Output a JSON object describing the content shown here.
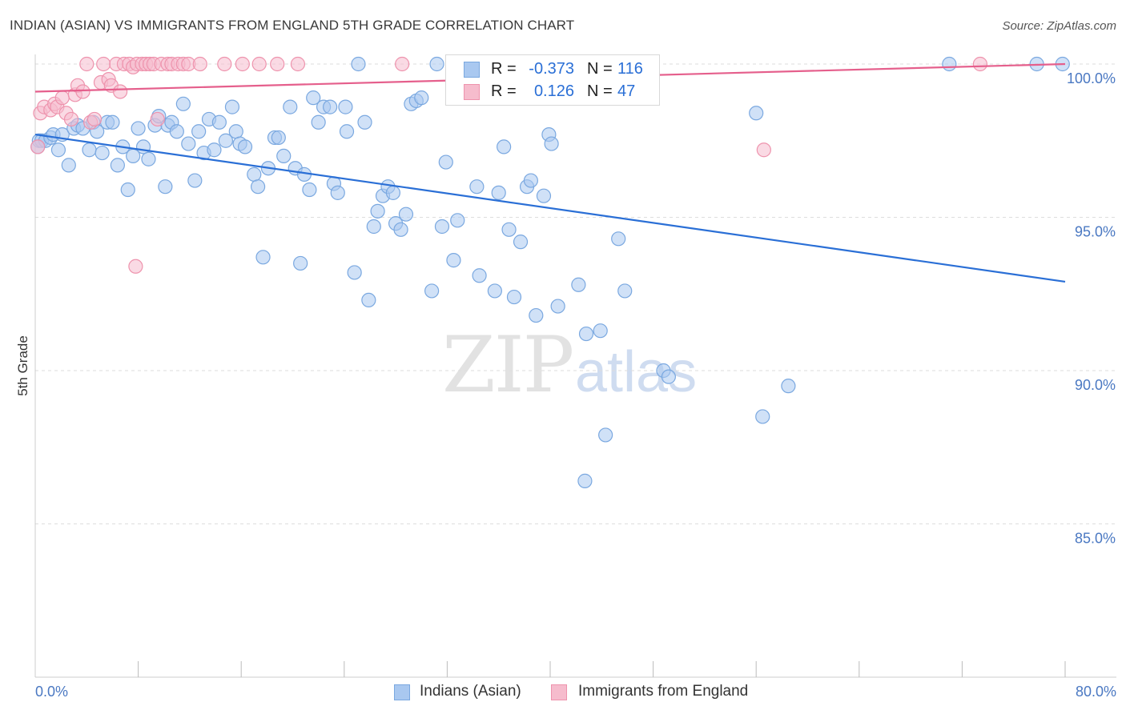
{
  "title": "INDIAN (ASIAN) VS IMMIGRANTS FROM ENGLAND 5TH GRADE CORRELATION CHART",
  "source": "Source: ZipAtlas.com",
  "watermark": {
    "zip": "ZIP",
    "atlas": "atlas"
  },
  "legend": {
    "rows": [
      {
        "r_label": "R =",
        "r_value": "-0.373",
        "n_label": "N =",
        "n_value": "116"
      },
      {
        "r_label": "R =",
        "r_value": "0.126",
        "n_label": "N =",
        "n_value": "47"
      }
    ]
  },
  "bottom_legend": [
    "Indians (Asian)",
    "Immigrants from England"
  ],
  "colors": {
    "blue_fill": "#a9c8f0",
    "blue_stroke": "#7aa8e0",
    "blue_line": "#2a6fd6",
    "pink_fill": "#f6bccd",
    "pink_stroke": "#ee93ad",
    "pink_line": "#e55f8c",
    "grid": "#dddddd",
    "axis_label": "#4a78c2"
  },
  "chart_data": {
    "type": "scatter",
    "title": "INDIAN (ASIAN) VS IMMIGRANTS FROM ENGLAND 5TH GRADE CORRELATION CHART",
    "ylabel": "5th Grade",
    "xlabel": "",
    "xlim": [
      0,
      80
    ],
    "ylim": [
      80.5,
      100.7
    ],
    "x_tick_labels": [
      "0.0%",
      "80.0%"
    ],
    "y_ticks": [
      85,
      90,
      95,
      100
    ],
    "y_tick_labels": [
      "85.0%",
      "90.0%",
      "95.0%",
      "100.0%"
    ],
    "grid": "horizontal dashed",
    "series": [
      {
        "name": "Indians (Asian)",
        "color": "#a9c8f0",
        "trend": {
          "x": [
            0,
            80
          ],
          "y": [
            97.7,
            92.9
          ]
        },
        "points": [
          [
            0.3,
            97.5
          ],
          [
            0.5,
            97.5
          ],
          [
            0.8,
            97.5
          ],
          [
            1.2,
            97.6
          ],
          [
            1.4,
            97.7
          ],
          [
            1.8,
            97.2
          ],
          [
            2.1,
            97.7
          ],
          [
            2.6,
            96.7
          ],
          [
            3.0,
            97.9
          ],
          [
            3.3,
            98.0
          ],
          [
            3.7,
            97.9
          ],
          [
            4.2,
            97.2
          ],
          [
            4.5,
            98.1
          ],
          [
            4.8,
            97.8
          ],
          [
            5.2,
            97.1
          ],
          [
            5.6,
            98.1
          ],
          [
            6.0,
            98.1
          ],
          [
            6.4,
            96.7
          ],
          [
            6.8,
            97.3
          ],
          [
            7.2,
            95.9
          ],
          [
            7.6,
            97.0
          ],
          [
            8.0,
            97.9
          ],
          [
            8.4,
            97.3
          ],
          [
            8.8,
            96.9
          ],
          [
            9.3,
            98.0
          ],
          [
            9.6,
            98.3
          ],
          [
            10.1,
            96.0
          ],
          [
            10.3,
            98.0
          ],
          [
            10.6,
            98.1
          ],
          [
            11.0,
            97.8
          ],
          [
            11.5,
            98.7
          ],
          [
            11.9,
            97.4
          ],
          [
            12.4,
            96.2
          ],
          [
            12.7,
            97.8
          ],
          [
            13.1,
            97.1
          ],
          [
            13.5,
            98.2
          ],
          [
            13.9,
            97.2
          ],
          [
            14.3,
            98.1
          ],
          [
            14.8,
            97.5
          ],
          [
            15.3,
            98.6
          ],
          [
            15.6,
            97.8
          ],
          [
            15.9,
            97.4
          ],
          [
            16.3,
            97.3
          ],
          [
            17.0,
            96.4
          ],
          [
            17.3,
            96.0
          ],
          [
            17.7,
            93.7
          ],
          [
            18.1,
            96.6
          ],
          [
            18.6,
            97.6
          ],
          [
            18.9,
            97.6
          ],
          [
            19.3,
            97.0
          ],
          [
            19.8,
            98.6
          ],
          [
            20.2,
            96.6
          ],
          [
            20.6,
            93.5
          ],
          [
            20.9,
            96.4
          ],
          [
            21.3,
            95.9
          ],
          [
            21.6,
            98.9
          ],
          [
            22.0,
            98.1
          ],
          [
            22.4,
            98.6
          ],
          [
            22.9,
            98.6
          ],
          [
            23.2,
            96.1
          ],
          [
            23.5,
            95.8
          ],
          [
            24.1,
            98.6
          ],
          [
            24.2,
            97.8
          ],
          [
            24.8,
            93.2
          ],
          [
            25.1,
            100.0
          ],
          [
            25.6,
            98.1
          ],
          [
            25.9,
            92.3
          ],
          [
            26.3,
            94.7
          ],
          [
            26.6,
            95.2
          ],
          [
            27.0,
            95.7
          ],
          [
            27.4,
            96.0
          ],
          [
            27.8,
            95.8
          ],
          [
            28.0,
            94.8
          ],
          [
            28.4,
            94.6
          ],
          [
            28.8,
            95.1
          ],
          [
            29.2,
            98.7
          ],
          [
            29.6,
            98.8
          ],
          [
            30.0,
            98.9
          ],
          [
            30.8,
            92.6
          ],
          [
            31.2,
            100.0
          ],
          [
            31.6,
            94.7
          ],
          [
            31.9,
            96.8
          ],
          [
            32.5,
            93.6
          ],
          [
            32.8,
            94.9
          ],
          [
            33.3,
            100.0
          ],
          [
            34.3,
            96.0
          ],
          [
            34.5,
            93.1
          ],
          [
            35.7,
            92.6
          ],
          [
            36.0,
            95.8
          ],
          [
            36.4,
            97.3
          ],
          [
            36.8,
            94.6
          ],
          [
            37.2,
            92.4
          ],
          [
            37.7,
            94.2
          ],
          [
            38.2,
            96.0
          ],
          [
            38.5,
            96.2
          ],
          [
            38.9,
            91.8
          ],
          [
            39.5,
            95.7
          ],
          [
            39.9,
            97.7
          ],
          [
            40.1,
            97.4
          ],
          [
            40.6,
            92.1
          ],
          [
            42.2,
            92.8
          ],
          [
            42.7,
            86.4
          ],
          [
            42.8,
            91.2
          ],
          [
            43.9,
            91.3
          ],
          [
            44.3,
            87.9
          ],
          [
            45.3,
            94.3
          ],
          [
            45.8,
            92.6
          ],
          [
            48.8,
            90.0
          ],
          [
            49.2,
            89.8
          ],
          [
            56.0,
            98.4
          ],
          [
            56.5,
            88.5
          ],
          [
            58.5,
            89.5
          ],
          [
            44.5,
            100.0
          ],
          [
            46.0,
            100.0
          ],
          [
            71.0,
            100.0
          ],
          [
            77.8,
            100.0
          ],
          [
            79.8,
            100.0
          ],
          [
            0.2,
            97.3
          ]
        ]
      },
      {
        "name": "Immigrants from England",
        "color": "#f6bccd",
        "trend": {
          "x": [
            0,
            80
          ],
          "y": [
            99.1,
            100.0
          ]
        },
        "points": [
          [
            0.2,
            97.3
          ],
          [
            0.4,
            98.4
          ],
          [
            0.7,
            98.6
          ],
          [
            1.2,
            98.5
          ],
          [
            1.5,
            98.7
          ],
          [
            1.7,
            98.6
          ],
          [
            2.1,
            98.9
          ],
          [
            2.4,
            98.4
          ],
          [
            2.8,
            98.2
          ],
          [
            3.1,
            99.0
          ],
          [
            3.3,
            99.3
          ],
          [
            3.7,
            99.1
          ],
          [
            4.0,
            100.0
          ],
          [
            4.3,
            98.1
          ],
          [
            4.6,
            98.2
          ],
          [
            5.1,
            99.4
          ],
          [
            5.3,
            100.0
          ],
          [
            5.7,
            99.5
          ],
          [
            5.9,
            99.3
          ],
          [
            6.3,
            100.0
          ],
          [
            6.6,
            99.1
          ],
          [
            6.9,
            100.0
          ],
          [
            7.3,
            100.0
          ],
          [
            7.6,
            99.9
          ],
          [
            7.9,
            100.0
          ],
          [
            8.3,
            100.0
          ],
          [
            8.6,
            100.0
          ],
          [
            8.9,
            100.0
          ],
          [
            9.2,
            100.0
          ],
          [
            9.5,
            98.2
          ],
          [
            9.8,
            100.0
          ],
          [
            10.3,
            100.0
          ],
          [
            10.6,
            100.0
          ],
          [
            11.1,
            100.0
          ],
          [
            11.5,
            100.0
          ],
          [
            11.9,
            100.0
          ],
          [
            12.8,
            100.0
          ],
          [
            14.7,
            100.0
          ],
          [
            16.1,
            100.0
          ],
          [
            17.4,
            100.0
          ],
          [
            18.8,
            100.0
          ],
          [
            20.4,
            100.0
          ],
          [
            28.5,
            100.0
          ],
          [
            32.8,
            100.0
          ],
          [
            56.6,
            97.2
          ],
          [
            73.4,
            100.0
          ],
          [
            7.8,
            93.4
          ]
        ]
      }
    ]
  }
}
